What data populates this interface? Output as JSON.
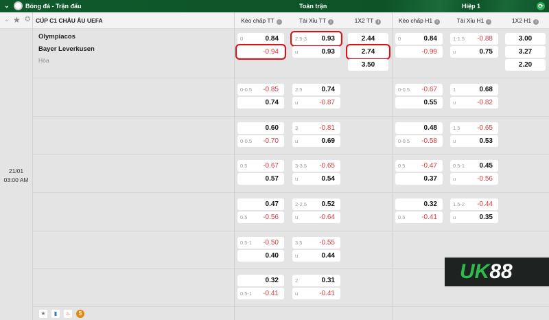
{
  "header": {
    "section": "Bóng đá - Trận đấu",
    "full_match": "Toàn trận",
    "first_half": "Hiệp 1"
  },
  "league": {
    "name": "CÚP C1 CHÂU ÂU UEFA"
  },
  "columns": [
    "Kèo chấp TT",
    "Tài Xỉu TT",
    "1X2 TT",
    "Kèo chấp H1",
    "Tài Xỉu H1",
    "1X2 H1"
  ],
  "match": {
    "home": "Olympiacos",
    "away": "Bayer Leverkusen",
    "draw": "Hòa",
    "date": "21/01",
    "time": "03:00 AM"
  },
  "rows": [
    {
      "kc_tt": [
        {
          "label": "0",
          "value": "0.84"
        },
        {
          "label": "",
          "value": "-0.94",
          "highlight": true
        }
      ],
      "tx_tt": [
        {
          "label": "2.5-3",
          "value": "0.93",
          "highlight": true
        },
        {
          "label": "u",
          "value": "0.93"
        }
      ],
      "x12_tt": [
        {
          "value": "2.44"
        },
        {
          "value": "2.74",
          "highlight": true
        },
        {
          "value": "3.50"
        }
      ],
      "kc_h1": [
        {
          "label": "0",
          "value": "0.84"
        },
        {
          "label": "",
          "value": "-0.99"
        }
      ],
      "tx_h1": [
        {
          "label": "1-1.5",
          "value": "-0.88"
        },
        {
          "label": "u",
          "value": "0.75"
        }
      ],
      "x12_h1": [
        {
          "value": "3.00"
        },
        {
          "value": "3.27"
        },
        {
          "value": "2.20"
        }
      ]
    },
    {
      "kc_tt": [
        {
          "label": "0-0.5",
          "value": "-0.85"
        },
        {
          "label": "",
          "value": "0.74"
        }
      ],
      "tx_tt": [
        {
          "label": "2.5",
          "value": "0.74"
        },
        {
          "label": "u",
          "value": "-0.87"
        }
      ],
      "kc_h1": [
        {
          "label": "0-0.5",
          "value": "-0.67"
        },
        {
          "label": "",
          "value": "0.55"
        }
      ],
      "tx_h1": [
        {
          "label": "1",
          "value": "0.68"
        },
        {
          "label": "u",
          "value": "-0.82"
        }
      ]
    },
    {
      "kc_tt": [
        {
          "label": "",
          "value": "0.60"
        },
        {
          "label": "0-0.5",
          "value": "-0.70"
        }
      ],
      "tx_tt": [
        {
          "label": "3",
          "value": "-0.81"
        },
        {
          "label": "u",
          "value": "0.69"
        }
      ],
      "kc_h1": [
        {
          "label": "",
          "value": "0.48"
        },
        {
          "label": "0-0.5",
          "value": "-0.58"
        }
      ],
      "tx_h1": [
        {
          "label": "1.5",
          "value": "-0.65"
        },
        {
          "label": "u",
          "value": "0.53"
        }
      ]
    },
    {
      "kc_tt": [
        {
          "label": "0.5",
          "value": "-0.67"
        },
        {
          "label": "",
          "value": "0.57"
        }
      ],
      "tx_tt": [
        {
          "label": "3-3.5",
          "value": "-0.65"
        },
        {
          "label": "u",
          "value": "0.54"
        }
      ],
      "kc_h1": [
        {
          "label": "0.5",
          "value": "-0.47"
        },
        {
          "label": "",
          "value": "0.37"
        }
      ],
      "tx_h1": [
        {
          "label": "0.5-1",
          "value": "0.45"
        },
        {
          "label": "u",
          "value": "-0.56"
        }
      ]
    },
    {
      "kc_tt": [
        {
          "label": "",
          "value": "0.47"
        },
        {
          "label": "0.5",
          "value": "-0.56"
        }
      ],
      "tx_tt": [
        {
          "label": "2-2.5",
          "value": "0.52"
        },
        {
          "label": "u",
          "value": "-0.64"
        }
      ],
      "kc_h1": [
        {
          "label": "",
          "value": "0.32"
        },
        {
          "label": "0.5",
          "value": "-0.41"
        }
      ],
      "tx_h1": [
        {
          "label": "1.5-2",
          "value": "-0.44"
        },
        {
          "label": "u",
          "value": "0.35"
        }
      ]
    },
    {
      "kc_tt": [
        {
          "label": "0.5-1",
          "value": "-0.50"
        },
        {
          "label": "",
          "value": "0.40"
        }
      ],
      "tx_tt": [
        {
          "label": "3.5",
          "value": "-0.55"
        },
        {
          "label": "u",
          "value": "0.44"
        }
      ]
    },
    {
      "kc_tt": [
        {
          "label": "",
          "value": "0.32"
        },
        {
          "label": "0.5-1",
          "value": "-0.41"
        }
      ],
      "tx_tt": [
        {
          "label": "2",
          "value": "0.31"
        },
        {
          "label": "u",
          "value": "-0.41"
        }
      ]
    }
  ],
  "footer_icons": [
    "star-icon",
    "database-icon",
    "fire-icon",
    "coin-icon"
  ],
  "logo": {
    "text_a": "UK",
    "text_b": "88"
  },
  "colors": {
    "header_green": "#0d5328",
    "negative": "#e0383d",
    "highlight": "#d4161c"
  }
}
